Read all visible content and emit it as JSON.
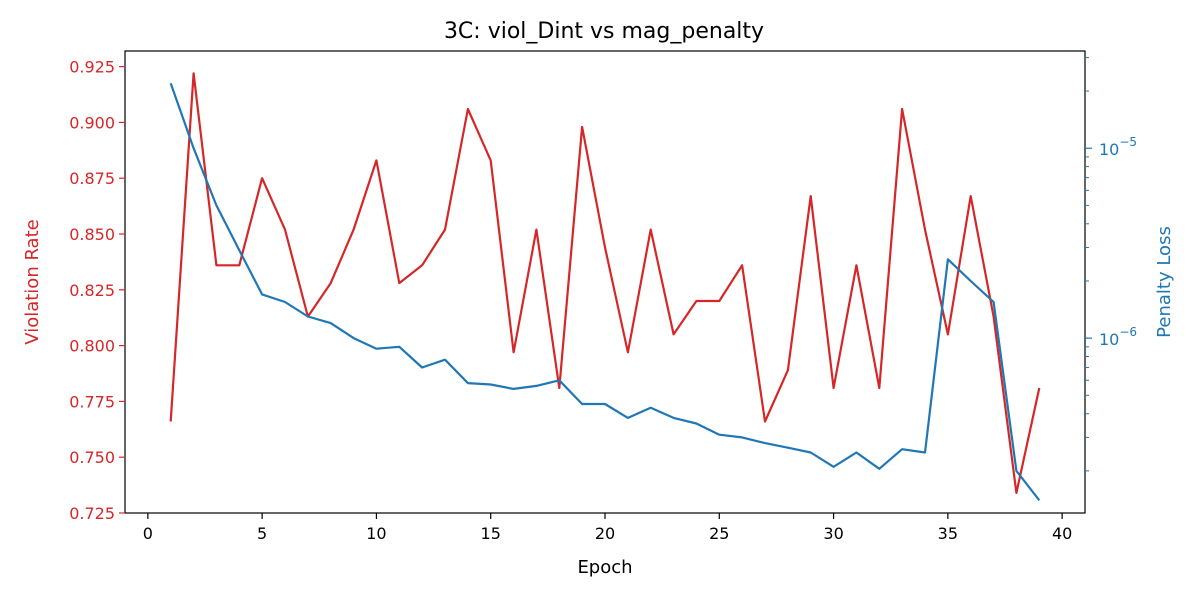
{
  "chart_data": {
    "type": "line",
    "title": "3C: viol_Dint vs mag_penalty",
    "xlabel": "Epoch",
    "ylabel_left": "Violation Rate",
    "ylabel_right": "Penalty Loss",
    "xlim": [
      -1,
      41
    ],
    "ylim_left": [
      0.725,
      0.932
    ],
    "ylim_right": [
      1.2e-07,
      3.25e-05
    ],
    "right_scale": "log",
    "x_ticks": [
      0,
      5,
      10,
      15,
      20,
      25,
      30,
      35,
      40
    ],
    "y_left_ticks": [
      "0.725",
      "0.750",
      "0.775",
      "0.800",
      "0.825",
      "0.850",
      "0.875",
      "0.900",
      "0.925"
    ],
    "y_right_ticks": [
      {
        "base": "10",
        "exp": "−5",
        "value": 1e-05
      },
      {
        "base": "10",
        "exp": "−6",
        "value": 1e-06
      }
    ],
    "legend": "none",
    "grid": false,
    "colors": {
      "left": "#d62728",
      "right": "#1f77b4"
    },
    "x": [
      1,
      2,
      3,
      4,
      5,
      6,
      7,
      8,
      9,
      10,
      11,
      12,
      13,
      14,
      15,
      16,
      17,
      18,
      19,
      20,
      21,
      22,
      23,
      24,
      25,
      26,
      27,
      28,
      29,
      30,
      31,
      32,
      33,
      34,
      35,
      36,
      37,
      38,
      39
    ],
    "series": [
      {
        "axis": "left",
        "values": [
          0.766,
          0.922,
          0.836,
          0.836,
          0.875,
          0.852,
          0.813,
          0.828,
          0.852,
          0.883,
          0.828,
          0.836,
          0.852,
          0.906,
          0.883,
          0.797,
          0.852,
          0.781,
          0.898,
          0.844,
          0.797,
          0.852,
          0.805,
          0.82,
          0.82,
          0.836,
          0.766,
          0.789,
          0.867,
          0.781,
          0.836,
          0.781,
          0.906,
          0.852,
          0.805,
          0.867,
          0.813,
          0.734,
          0.781
        ]
      },
      {
        "axis": "right",
        "values": [
          2.2e-05,
          1e-05,
          5e-06,
          2.9e-06,
          1.7e-06,
          1.55e-06,
          1.3e-06,
          1.2e-06,
          1e-06,
          8.8e-07,
          9e-07,
          7e-07,
          7.7e-07,
          5.8e-07,
          5.7e-07,
          5.4e-07,
          5.6e-07,
          6e-07,
          4.5e-07,
          4.5e-07,
          3.8e-07,
          4.3e-07,
          3.8e-07,
          3.55e-07,
          3.1e-07,
          3e-07,
          2.8e-07,
          2.65e-07,
          2.5e-07,
          2.1e-07,
          2.5e-07,
          2.05e-07,
          2.6e-07,
          2.5e-07,
          2.6e-06,
          2e-06,
          1.55e-06,
          2e-07,
          1.4e-07
        ]
      }
    ]
  }
}
